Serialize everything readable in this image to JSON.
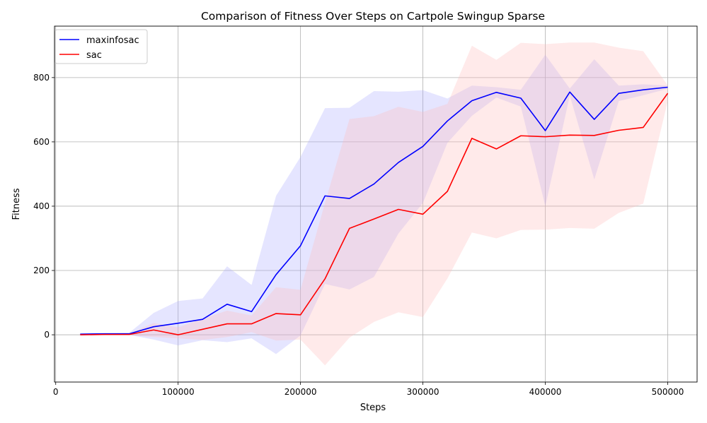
{
  "chart_data": {
    "type": "line",
    "title": "Comparison of Fitness Over Steps on Cartpole Swingup Sparse",
    "xlabel": "Steps",
    "ylabel": "Fitness",
    "xlim": [
      -1000,
      524000
    ],
    "ylim": [
      -147,
      960
    ],
    "xticks": [
      0,
      100000,
      200000,
      300000,
      400000,
      500000
    ],
    "yticks": [
      0,
      200,
      400,
      600,
      800
    ],
    "grid": true,
    "legend_position": "top-left",
    "x": [
      20000,
      40000,
      60000,
      80000,
      100000,
      120000,
      140000,
      160000,
      180000,
      200000,
      220000,
      240000,
      260000,
      280000,
      300000,
      320000,
      340000,
      360000,
      380000,
      400000,
      420000,
      440000,
      460000,
      480000,
      500000
    ],
    "series": [
      {
        "name": "maxinfosac",
        "color": "#0000ff",
        "band_color": "#aaaaff",
        "values": [
          2,
          3,
          3,
          25,
          36,
          48,
          95,
          72,
          187,
          277,
          432,
          424,
          469,
          536,
          586,
          665,
          728,
          754,
          736,
          635,
          755,
          670,
          751,
          762,
          770
        ],
        "upper": [
          3,
          4,
          6,
          68,
          105,
          113,
          213,
          155,
          432,
          553,
          705,
          706,
          758,
          756,
          761,
          735,
          775,
          770,
          762,
          871,
          766,
          857,
          775,
          779,
          775
        ],
        "lower": [
          1,
          2,
          0,
          -15,
          -33,
          -17,
          -23,
          -11,
          -60,
          -2,
          158,
          141,
          180,
          315,
          410,
          597,
          681,
          738,
          710,
          400,
          744,
          483,
          727,
          745,
          765
        ]
      },
      {
        "name": "sac",
        "color": "#ff0000",
        "band_color": "#ffbbbb",
        "values": [
          0,
          1,
          1,
          15,
          0,
          17,
          34,
          34,
          66,
          62,
          174,
          331,
          360,
          390,
          375,
          446,
          611,
          578,
          619,
          616,
          621,
          620,
          636,
          645,
          751
        ],
        "upper": [
          1,
          2,
          3,
          37,
          23,
          50,
          75,
          60,
          148,
          140,
          410,
          671,
          680,
          709,
          693,
          718,
          899,
          855,
          908,
          904,
          909,
          909,
          893,
          882,
          776
        ],
        "lower": [
          -1,
          0,
          -1,
          -7,
          -11,
          -16,
          -7,
          8,
          -18,
          -15,
          -95,
          -9,
          40,
          70,
          55,
          175,
          318,
          300,
          326,
          327,
          332,
          330,
          379,
          408,
          726
        ]
      }
    ]
  }
}
